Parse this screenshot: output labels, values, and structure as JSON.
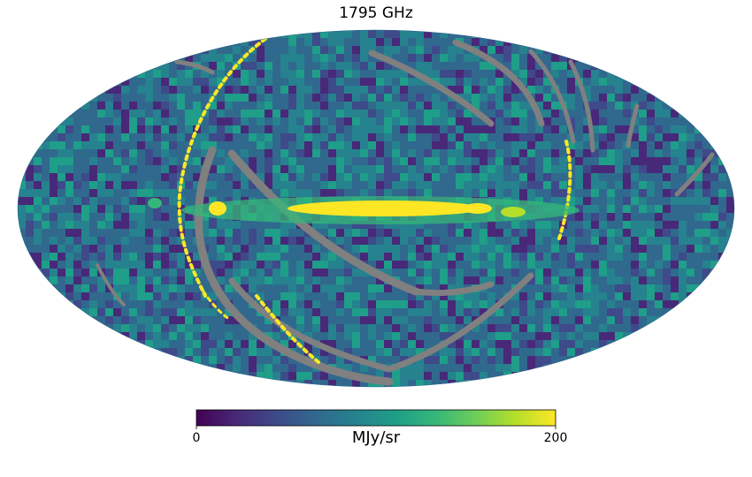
{
  "map": {
    "title": "1795 GHz",
    "projection": "mollweide",
    "colormap": "viridis",
    "bad_value_color": "#808080"
  },
  "colorbar": {
    "label": "MJy/sr",
    "min_label": "0",
    "max_label": "200",
    "min": 0,
    "max": 200,
    "colors": [
      "#440154",
      "#482878",
      "#3e4a89",
      "#31688e",
      "#26828e",
      "#1f9e89",
      "#35b779",
      "#6ece58",
      "#b5de2b",
      "#fde725"
    ]
  }
}
